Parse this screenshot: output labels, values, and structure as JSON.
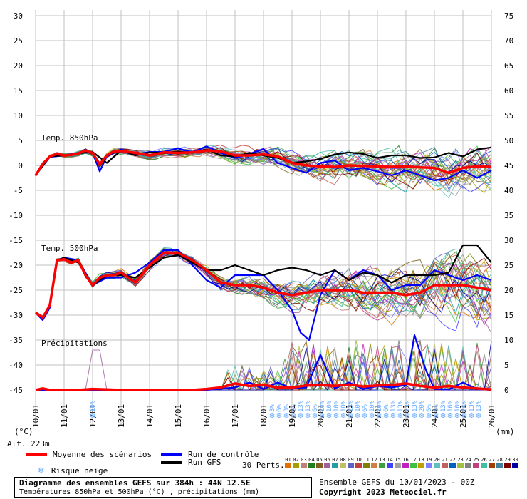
{
  "chart_data": {
    "type": "line",
    "title": "Diagramme des ensembles GEFS sur 384h : 44N 12.5E",
    "subtitle": "Températures 850hPa et 500hPa (°C) , précipitations (mm)",
    "run_info": "Ensemble GEFS du 10/01/2023 - 00Z",
    "copyright": "Copyright 2023 Meteociel.fr",
    "altitude": "Alt. 223m",
    "left_unit": "(°C)",
    "right_unit": "(mm)",
    "y_left_ticks": [
      30,
      25,
      20,
      15,
      10,
      5,
      0,
      -5,
      -10,
      -15,
      -20,
      -25,
      -30,
      -35,
      -40,
      -45
    ],
    "y_left_range": [
      -45,
      30
    ],
    "y_right_ticks": [
      75,
      70,
      65,
      60,
      55,
      50,
      45,
      40,
      35,
      30,
      25,
      20,
      15,
      10,
      5,
      0
    ],
    "x_ticks": [
      "10/01",
      "11/01",
      "12/01",
      "13/01",
      "14/01",
      "15/01",
      "16/01",
      "17/01",
      "18/01",
      "19/01",
      "20/01",
      "21/01",
      "22/01",
      "23/01",
      "24/01",
      "25/01",
      "26/01"
    ],
    "grid": true,
    "panel_labels": {
      "t850": "Temp. 850hPa",
      "t500": "Temp. 500hPa",
      "precip": "Précipitations"
    },
    "legend": {
      "mean": "Moyenne des scénarios",
      "control": "Run de contrôle",
      "gfs": "Run GFS",
      "snow": "Risque neige",
      "perts_label": "30 Perts."
    },
    "colors": {
      "mean": "#ff0000",
      "control": "#0000ff",
      "gfs": "#000000",
      "snow": "#66aaff",
      "grid": "#c0c0c0"
    },
    "snow_risk": {
      "day_index": [
        2.0,
        8.3,
        8.55,
        8.8,
        9.05,
        9.3,
        9.55,
        9.8,
        10.05,
        10.3,
        10.55,
        10.8,
        11.05,
        11.3,
        11.55,
        11.8,
        12.05,
        12.3,
        12.55,
        12.8,
        13.05,
        13.3,
        13.55,
        13.8,
        14.05,
        14.3,
        14.55,
        14.8,
        15.05,
        15.3,
        15.55
      ],
      "percent": [
        "10%",
        "3%",
        "6%",
        "3%",
        "6%",
        "13%",
        "13%",
        "6%",
        "10%",
        "10%",
        "10%",
        "10%",
        "13%",
        "10%",
        "6%",
        "10%",
        "10%",
        "6%",
        "13%",
        "13%",
        "13%",
        "13%",
        "20%",
        "6%",
        "6%",
        "13%",
        "16%",
        "10%",
        "16%",
        "13%",
        "13%"
      ]
    },
    "series": [
      {
        "name": "Moyenne des scénarios",
        "panel": "t850",
        "color": "#ff0000",
        "day": [
          0,
          0.25,
          0.5,
          0.75,
          1,
          1.25,
          1.5,
          1.75,
          2,
          2.25,
          2.5,
          2.75,
          3,
          3.5,
          4,
          4.5,
          5,
          5.5,
          6,
          6.5,
          7,
          7.5,
          8,
          8.5,
          9,
          9.5,
          10,
          10.5,
          11,
          11.5,
          12,
          12.5,
          13,
          13.5,
          14,
          14.5,
          15,
          15.5,
          16
        ],
        "values": [
          -2,
          0.3,
          1.8,
          2.3,
          2.0,
          2.1,
          2.4,
          3.0,
          2.5,
          0.2,
          2.0,
          2.8,
          2.9,
          2.5,
          2.0,
          2.6,
          2.5,
          2.6,
          3.0,
          2.8,
          2.0,
          2.0,
          2.2,
          1.8,
          0.5,
          0,
          -0.2,
          -0.3,
          0,
          -0.1,
          -0.2,
          -0.3,
          -0.2,
          -0.4,
          -0.5,
          -1.5,
          -0.5,
          -0.2,
          -0.3
        ]
      },
      {
        "name": "Moyenne des scénarios",
        "panel": "t500",
        "color": "#ff0000",
        "day": [
          0,
          0.25,
          0.5,
          0.75,
          1,
          1.25,
          1.5,
          1.75,
          2,
          2.25,
          2.5,
          2.75,
          3,
          3.5,
          4,
          4.5,
          5,
          5.5,
          6,
          6.5,
          7,
          7.5,
          8,
          8.5,
          9,
          9.5,
          10,
          10.5,
          11,
          11.5,
          12,
          12.5,
          13,
          13.5,
          14,
          14.5,
          15,
          15.5,
          16
        ],
        "values": [
          -29.5,
          -30.5,
          -28,
          -19,
          -18.8,
          -19.5,
          -19,
          -22,
          -24,
          -22.5,
          -22,
          -22,
          -21.5,
          -23.5,
          -20,
          -17.5,
          -17.5,
          -19,
          -21,
          -23.5,
          -24,
          -24,
          -24.5,
          -25.5,
          -26,
          -25.5,
          -25,
          -25,
          -25,
          -25.5,
          -25.5,
          -25.5,
          -26,
          -25.5,
          -24,
          -24,
          -24,
          -24.5,
          -25
        ]
      },
      {
        "name": "Moyenne des scénarios",
        "panel": "precip",
        "color": "#ff0000",
        "day": [
          0,
          0.25,
          0.5,
          0.75,
          1,
          1.5,
          2,
          2.5,
          3,
          3.5,
          4,
          4.5,
          5,
          5.5,
          6,
          6.5,
          7,
          7.5,
          8,
          8.5,
          9,
          9.5,
          10,
          10.5,
          11,
          11.5,
          12,
          12.5,
          13,
          13.5,
          14,
          14.5,
          15,
          15.5,
          16
        ],
        "values": [
          0,
          0.3,
          0,
          0,
          0,
          0,
          0.2,
          0.1,
          0,
          0,
          0,
          0,
          0,
          0,
          0.2,
          0.5,
          1.3,
          0.8,
          1,
          0.5,
          0.5,
          0.9,
          1,
          0.8,
          1.1,
          0.7,
          0.9,
          1,
          1.3,
          0.8,
          0.5,
          0.8,
          0.5,
          0.3,
          0.1
        ]
      },
      {
        "name": "Run de contrôle",
        "panel": "t850",
        "color": "#0000ff",
        "day": [
          0,
          0.5,
          1,
          1.5,
          2,
          2.25,
          2.5,
          3,
          3.5,
          4,
          4.5,
          5,
          5.5,
          6,
          6.5,
          7,
          7.5,
          8,
          8.5,
          9,
          9.5,
          10,
          10.5,
          11,
          11.5,
          12,
          12.5,
          13,
          13.5,
          14,
          14.5,
          15,
          15.5,
          16
        ],
        "values": [
          -2,
          1.7,
          2.0,
          2.5,
          2.6,
          -1.2,
          1.8,
          3.2,
          2.2,
          2.7,
          2.7,
          3.4,
          2.6,
          3.8,
          2.5,
          1.5,
          2.3,
          3.3,
          0.5,
          -0.5,
          -1.5,
          0.5,
          1,
          -1,
          -0.5,
          -1.2,
          -2,
          -1,
          -2,
          -3,
          -2.5,
          -1,
          -2.5,
          -1
        ]
      },
      {
        "name": "Run de contrôle",
        "panel": "t500",
        "color": "#0000ff",
        "day": [
          0,
          0.25,
          0.5,
          0.75,
          1,
          1.5,
          2,
          2.5,
          3,
          3.5,
          4,
          4.5,
          5,
          5.5,
          6,
          6.5,
          7,
          7.5,
          8,
          8.5,
          9,
          9.3,
          9.6,
          10,
          10.5,
          11,
          11.5,
          12,
          12.5,
          13,
          13.5,
          14,
          14.5,
          15,
          15.5,
          16
        ],
        "values": [
          -29.5,
          -31,
          -28.5,
          -19,
          -18.5,
          -19,
          -24,
          -22.5,
          -22.5,
          -21.5,
          -19.5,
          -17,
          -17,
          -20,
          -23,
          -24.5,
          -22,
          -22,
          -22,
          -25,
          -29,
          -33.5,
          -35,
          -26,
          -21,
          -23,
          -21,
          -22,
          -25,
          -24,
          -24,
          -21,
          -22,
          -23,
          -22,
          -23
        ]
      },
      {
        "name": "Run de contrôle",
        "panel": "precip",
        "color": "#0000ff",
        "day": [
          0,
          1,
          2,
          3,
          4,
          5,
          6,
          7,
          7.5,
          8,
          8.5,
          9,
          9.5,
          10,
          10.5,
          11,
          11.5,
          12,
          12.5,
          13,
          13.3,
          13.7,
          14,
          14.5,
          15,
          15.5,
          16
        ],
        "values": [
          0,
          0,
          0,
          0,
          0,
          0,
          0,
          0.5,
          1.5,
          0.2,
          1.5,
          0.3,
          0.5,
          7,
          0.3,
          1.5,
          0.2,
          0.8,
          0.5,
          1,
          11,
          4,
          0.2,
          0.1,
          1.5,
          0.2,
          0
        ]
      },
      {
        "name": "Run GFS",
        "panel": "t850",
        "color": "#000000",
        "day": [
          0,
          0.5,
          1,
          1.5,
          2,
          2.5,
          3,
          3.5,
          4,
          4.5,
          5,
          5.5,
          6,
          6.5,
          7,
          7.5,
          8,
          8.5,
          9,
          9.5,
          10,
          10.5,
          11,
          11.5,
          12,
          12.5,
          13,
          13.5,
          14,
          14.5,
          15,
          15.5,
          16
        ],
        "values": [
          -2,
          1.8,
          2.0,
          2.4,
          2.7,
          0.5,
          3.0,
          2.0,
          2.6,
          2.5,
          2.8,
          2.5,
          3.2,
          2.0,
          1.8,
          2.5,
          2.0,
          1.5,
          0.5,
          0.8,
          1.3,
          2.2,
          2.6,
          2.3,
          1.5,
          2.0,
          2.0,
          1.5,
          1.6,
          2.5,
          1.8,
          3.2,
          3.6
        ]
      },
      {
        "name": "Run GFS",
        "panel": "t500",
        "color": "#000000",
        "day": [
          0,
          0.25,
          0.5,
          0.75,
          1,
          1.5,
          2,
          2.5,
          3,
          3.5,
          4,
          4.5,
          5,
          5.5,
          6,
          6.5,
          7,
          7.5,
          8,
          8.5,
          9,
          9.5,
          10,
          10.5,
          11,
          11.5,
          12,
          12.5,
          13,
          13.5,
          14,
          14.5,
          15,
          15.5,
          16
        ],
        "values": [
          -29.5,
          -30.5,
          -28,
          -19,
          -18.5,
          -19.5,
          -24,
          -22,
          -22,
          -22.5,
          -20.5,
          -18.5,
          -18,
          -19.5,
          -21,
          -21,
          -20,
          -21,
          -22,
          -21,
          -20.5,
          -21,
          -22,
          -21,
          -23,
          -21.5,
          -22,
          -23.5,
          -22,
          -22,
          -22,
          -21.5,
          -16,
          -16,
          -19.5
        ]
      }
    ]
  }
}
